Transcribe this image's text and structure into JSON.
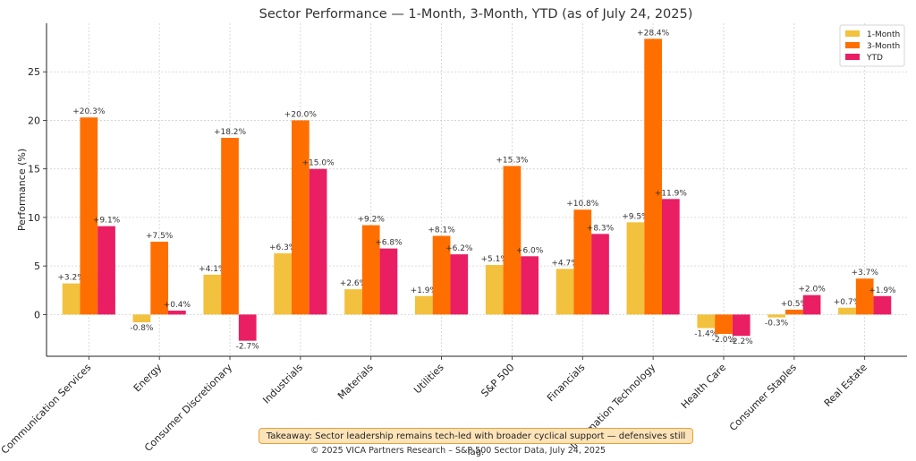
{
  "chart_data": {
    "type": "bar",
    "title": "Sector Performance — 1-Month, 3-Month, YTD (as of July 24, 2025)",
    "ylabel": "Performance (%)",
    "xlabel": "",
    "ylim": [
      -4.3,
      30
    ],
    "yticks": [
      0,
      5,
      10,
      15,
      20,
      25
    ],
    "grid": true,
    "legend_position": "top-right",
    "categories": [
      "Communication Services",
      "Energy",
      "Consumer Discretionary",
      "Industrials",
      "Materials",
      "Utilities",
      "S&P 500",
      "Financials",
      "Information Technology",
      "Health Care",
      "Consumer Staples",
      "Real Estate"
    ],
    "series": [
      {
        "name": "1-Month",
        "color": "#f2c13d",
        "values": [
          3.2,
          -0.8,
          4.1,
          6.3,
          2.6,
          1.9,
          5.1,
          4.7,
          9.5,
          -1.4,
          -0.3,
          0.7
        ],
        "labels": [
          "+3.2%",
          "-0.8%",
          "+4.1%",
          "+6.3%",
          "+2.6%",
          "+1.9%",
          "+5.1%",
          "+4.7%",
          "+9.5%",
          "-1.4%",
          "-0.3%",
          "+0.7%"
        ]
      },
      {
        "name": "3-Month",
        "color": "#ff6f00",
        "values": [
          20.3,
          7.5,
          18.2,
          20.0,
          9.2,
          8.1,
          15.3,
          10.8,
          28.4,
          -2.0,
          0.5,
          3.7
        ],
        "labels": [
          "+20.3%",
          "+7.5%",
          "+18.2%",
          "+20.0%",
          "+9.2%",
          "+8.1%",
          "+15.3%",
          "+10.8%",
          "+28.4%",
          "-2.0%",
          "+0.5%",
          "+3.7%"
        ]
      },
      {
        "name": "YTD",
        "color": "#e91e63",
        "values": [
          9.1,
          0.4,
          -2.7,
          15.0,
          6.8,
          6.2,
          6.0,
          8.3,
          11.9,
          -2.2,
          2.0,
          1.9
        ],
        "labels": [
          "+9.1%",
          "+0.4%",
          "-2.7%",
          "+15.0%",
          "+6.8%",
          "+6.2%",
          "+6.0%",
          "+8.3%",
          "+11.9%",
          "-2.2%",
          "+2.0%",
          "+1.9%"
        ]
      }
    ]
  },
  "takeaway": "Takeaway: Sector leadership remains tech-led with broader cyclical support — defensives still lag.",
  "footer": "© 2025 VICA Partners Research – S&P 500 Sector Data, July 24, 2025"
}
